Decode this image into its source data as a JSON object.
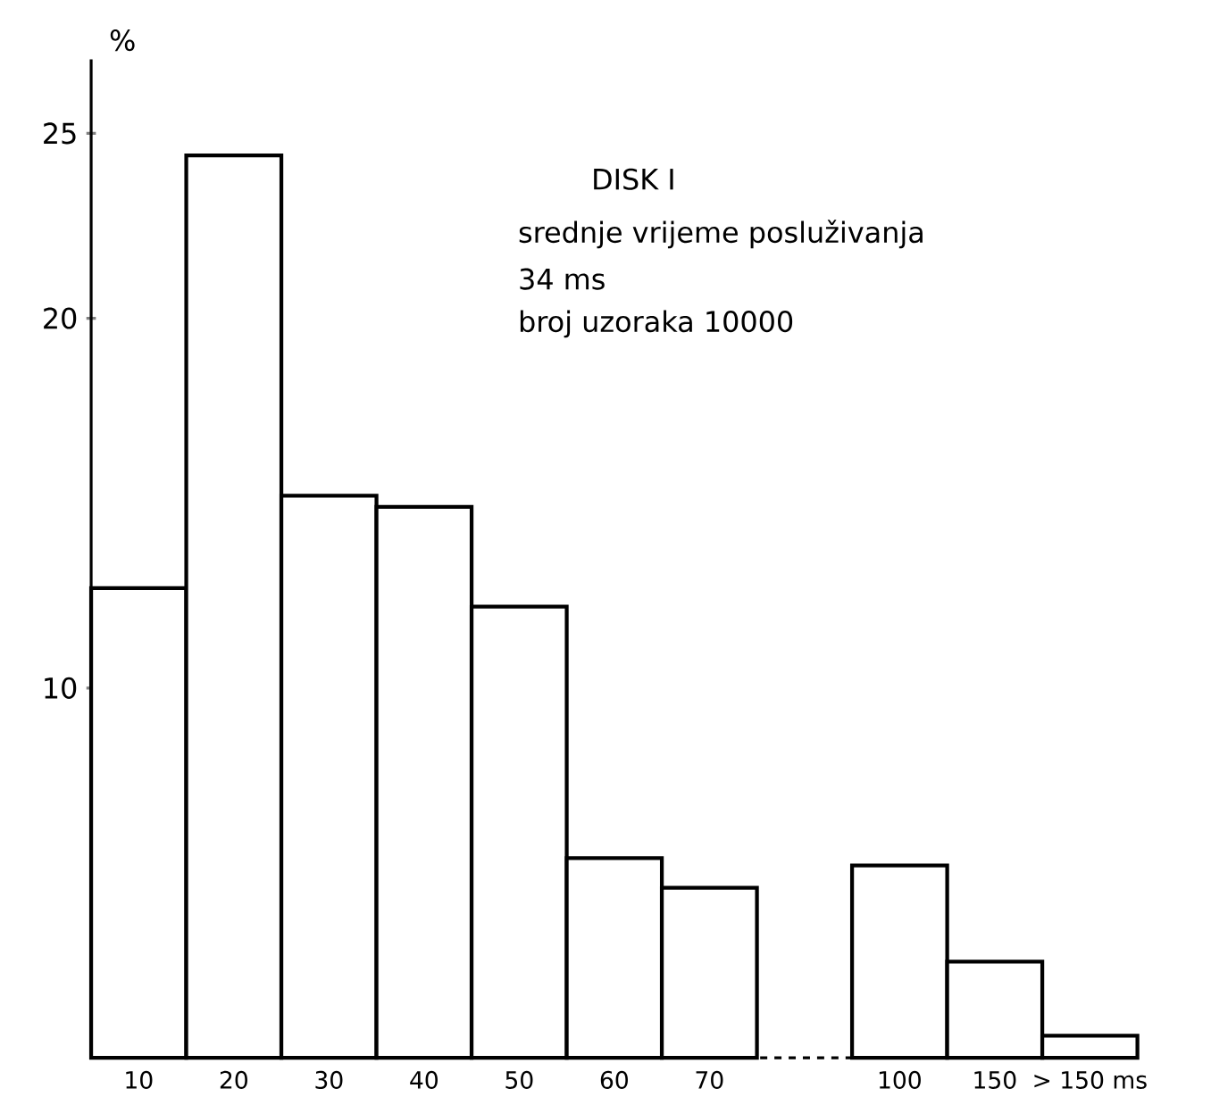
{
  "chart_data": {
    "type": "bar",
    "ylabel": "%",
    "categories": [
      "10",
      "20",
      "30",
      "40",
      "50",
      "60",
      "70",
      null,
      "100",
      "150",
      "> 150 ms"
    ],
    "values": [
      12.7,
      24.4,
      15.2,
      14.9,
      12.2,
      5.4,
      4.6,
      null,
      5.2,
      2.6,
      0.6
    ],
    "color": "#ffffff",
    "ylim": [
      0,
      27
    ],
    "yticks": [
      10,
      20,
      25
    ],
    "annotations": [
      "DISK I",
      "srednje vrijeme posluživanja",
      "34 ms",
      "broj uzoraka 10000"
    ],
    "grid": false
  }
}
